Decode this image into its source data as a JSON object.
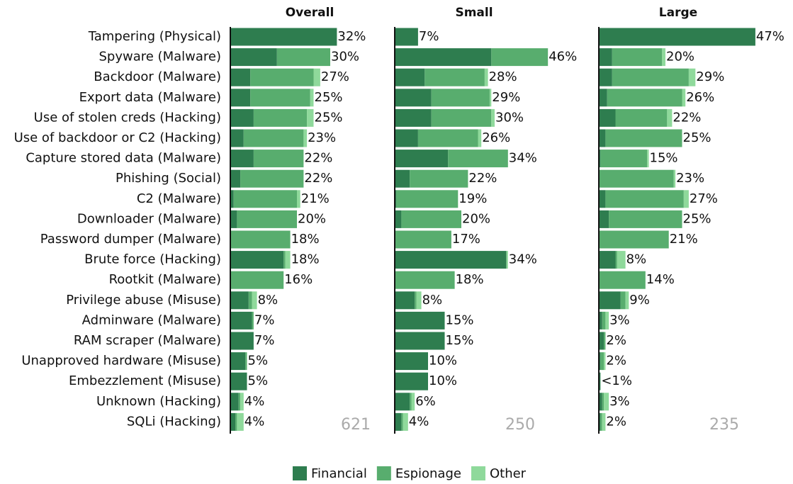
{
  "chart_data": {
    "type": "bar",
    "orientation": "horizontal",
    "stacked": true,
    "xlim": [
      0,
      50
    ],
    "categories": [
      "Tampering (Physical)",
      "Spyware (Malware)",
      "Backdoor (Malware)",
      "Export data (Malware)",
      "Use of stolen creds (Hacking)",
      "Use of backdoor or C2 (Hacking)",
      "Capture stored data (Malware)",
      "Phishing (Social)",
      "C2 (Malware)",
      "Downloader (Malware)",
      "Password dumper (Malware)",
      "Brute force (Hacking)",
      "Rootkit (Malware)",
      "Privilege abuse (Misuse)",
      "Adminware (Malware)",
      "RAM scraper (Malware)",
      "Unapproved hardware (Misuse)",
      "Embezzlement (Misuse)",
      "Unknown (Hacking)",
      "SQLi (Hacking)"
    ],
    "legend": [
      {
        "name": "Financial",
        "color": "#2e7d4f"
      },
      {
        "name": "Espionage",
        "color": "#58ad6e"
      },
      {
        "name": "Other",
        "color": "#8fd99b"
      }
    ],
    "panels": [
      {
        "title": "Overall",
        "n": 621,
        "series": [
          {
            "values": [
              32,
              14,
              6,
              6,
              7,
              4,
              7,
              3,
              1,
              2,
              0,
              16,
              0,
              5.5,
              6.5,
              7,
              4.5,
              5,
              2.5,
              1.5
            ]
          },
          {
            "values": [
              0,
              16,
              19,
              18,
              16,
              18,
              15,
              19,
              19,
              18,
              18,
              0.5,
              16,
              1,
              0.5,
              0,
              0.5,
              0,
              0.5,
              0.5
            ]
          },
          {
            "values": [
              0,
              0,
              2,
              1,
              2,
              1,
              0,
              0,
              1,
              0,
              0,
              1.5,
              0,
              1.5,
              0,
              0,
              0,
              0,
              1,
              2
            ]
          }
        ],
        "totals": [
          32,
          30,
          27,
          25,
          25,
          23,
          22,
          22,
          21,
          20,
          18,
          18,
          16,
          8,
          7,
          7,
          5,
          5,
          4,
          4
        ],
        "value_labels": [
          "32%",
          "30%",
          "27%",
          "25%",
          "25%",
          "23%",
          "22%",
          "22%",
          "21%",
          "20%",
          "18%",
          "18%",
          "16%",
          "8%",
          "7%",
          "7%",
          "5%",
          "5%",
          "4%",
          "4%"
        ]
      },
      {
        "title": "Small",
        "n": 250,
        "series": [
          {
            "values": [
              7,
              29,
              9,
              11,
              11,
              7,
              16,
              4.5,
              0.5,
              2,
              0,
              33.5,
              0,
              6,
              15,
              15,
              10,
              10,
              4.5,
              2
            ]
          },
          {
            "values": [
              0,
              17,
              18,
              17.5,
              18,
              18,
              18,
              17.5,
              18.5,
              18,
              17,
              0,
              18,
              0.5,
              0,
              0,
              0,
              0,
              0.5,
              0.5
            ]
          },
          {
            "values": [
              0,
              0,
              1,
              0.5,
              1,
              1,
              0,
              0,
              0,
              0,
              0,
              0.5,
              0,
              1.5,
              0,
              0,
              0,
              0,
              1,
              1.5
            ]
          }
        ],
        "totals": [
          7,
          46,
          28,
          29,
          30,
          26,
          34,
          22,
          19,
          20,
          17,
          34,
          18,
          8,
          15,
          15,
          10,
          10,
          6,
          4
        ],
        "value_labels": [
          "7%",
          "46%",
          "28%",
          "29%",
          "30%",
          "26%",
          "34%",
          "22%",
          "19%",
          "20%",
          "17%",
          "34%",
          "18%",
          "8%",
          "15%",
          "15%",
          "10%",
          "10%",
          "6%",
          "4%"
        ]
      },
      {
        "title": "Large",
        "n": 235,
        "series": [
          {
            "values": [
              47,
              4,
              4,
              2.5,
              5,
              2,
              0.5,
              0,
              2,
              3,
              0,
              5,
              0,
              6.5,
              1,
              1.5,
              0.5,
              0.5,
              1,
              0.5
            ]
          },
          {
            "values": [
              0,
              15,
              23,
              22.5,
              15.5,
              23,
              14,
              22.5,
              23.5,
              22,
              21,
              0.5,
              14,
              1.5,
              1,
              0.5,
              1,
              0,
              0.5,
              0.5
            ]
          },
          {
            "values": [
              0,
              1,
              2,
              1,
              1.5,
              0,
              0.5,
              0.5,
              1.5,
              0,
              0,
              2.5,
              0,
              1,
              1,
              0,
              0.5,
              0,
              1.5,
              1
            ]
          }
        ],
        "totals": [
          47,
          20,
          29,
          26,
          22,
          25,
          15,
          23,
          27,
          25,
          21,
          8,
          14,
          9,
          3,
          2,
          2,
          0.5,
          3,
          2
        ],
        "value_labels": [
          "47%",
          "20%",
          "29%",
          "26%",
          "22%",
          "25%",
          "15%",
          "23%",
          "27%",
          "25%",
          "21%",
          "8%",
          "14%",
          "9%",
          "3%",
          "2%",
          "2%",
          "<1%",
          "3%",
          "2%"
        ]
      }
    ]
  }
}
